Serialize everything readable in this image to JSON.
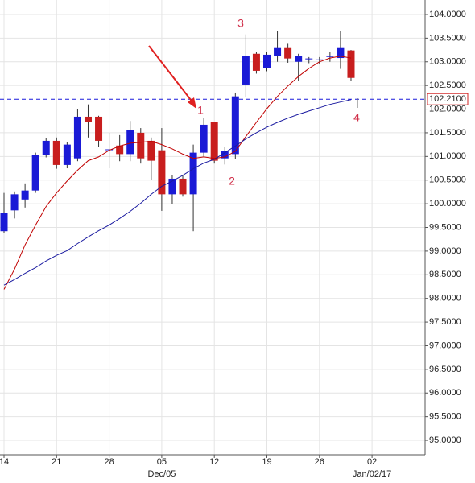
{
  "chart_data": {
    "type": "candlestick",
    "categories": [
      "14",
      null,
      null,
      null,
      null,
      "21",
      null,
      null,
      null,
      null,
      "28",
      null,
      null,
      null,
      null,
      "05",
      null,
      null,
      null,
      null,
      "12",
      null,
      null,
      null,
      null,
      "19",
      null,
      null,
      null,
      null,
      "26",
      null,
      null,
      null,
      null,
      "02"
    ],
    "category_sublabels": [
      null,
      null,
      null,
      null,
      null,
      null,
      null,
      null,
      null,
      null,
      null,
      null,
      null,
      null,
      null,
      "Dec/05",
      null,
      null,
      null,
      null,
      null,
      null,
      null,
      null,
      null,
      null,
      null,
      null,
      null,
      null,
      null,
      null,
      null,
      null,
      null,
      "Jan/02/17"
    ],
    "open": [
      99.42,
      99.86,
      100.09,
      100.28,
      101.03,
      101.33,
      100.82,
      100.96,
      101.84,
      101.84,
      101.15,
      101.23,
      101.05,
      101.5,
      101.33,
      101.13,
      100.2,
      100.53,
      100.2,
      101.08,
      101.73,
      100.96,
      101.05,
      102.52,
      103.17,
      102.86,
      103.12,
      103.29,
      103.0,
      103.07,
      103.05,
      103.12,
      103.08,
      103.24,
      null,
      null
    ],
    "high": [
      100.23,
      100.26,
      100.43,
      101.08,
      101.38,
      101.4,
      101.3,
      102.0,
      102.1,
      101.86,
      101.5,
      101.45,
      101.75,
      101.6,
      101.4,
      101.6,
      100.6,
      100.6,
      101.25,
      101.82,
      101.73,
      101.2,
      102.35,
      103.58,
      103.2,
      103.2,
      103.65,
      103.38,
      103.17,
      103.1,
      103.1,
      103.2,
      103.65,
      103.25,
      null,
      null
    ],
    "low": [
      99.38,
      99.69,
      99.92,
      100.23,
      100.98,
      100.74,
      100.75,
      100.9,
      101.4,
      101.2,
      100.75,
      100.9,
      100.9,
      100.85,
      100.5,
      99.85,
      100.0,
      100.15,
      99.42,
      101.0,
      100.85,
      100.83,
      100.95,
      102.25,
      102.75,
      102.8,
      103.0,
      102.98,
      102.6,
      102.97,
      102.95,
      103.0,
      102.85,
      102.6,
      null,
      null
    ],
    "close": [
      99.81,
      100.2,
      100.28,
      101.03,
      101.33,
      100.82,
      101.25,
      101.84,
      101.72,
      101.33,
      101.15,
      101.05,
      101.55,
      100.96,
      100.91,
      100.2,
      100.53,
      100.2,
      101.08,
      101.67,
      100.91,
      101.11,
      102.27,
      103.12,
      102.81,
      103.15,
      103.29,
      103.07,
      103.12,
      103.07,
      103.05,
      103.12,
      103.29,
      102.66,
      null,
      null
    ],
    "up_color": "#1a1ad6",
    "down_color": "#c81e1e",
    "lines": [
      {
        "color": "#c00000",
        "values": [
          98.19,
          98.62,
          99.13,
          99.55,
          99.94,
          100.23,
          100.48,
          100.71,
          100.91,
          100.99,
          101.13,
          101.22,
          101.28,
          101.3,
          101.32,
          101.25,
          101.16,
          101.05,
          100.96,
          100.99,
          100.96,
          100.99,
          101.11,
          101.42,
          101.72,
          102.01,
          102.27,
          102.49,
          102.69,
          102.86,
          103.0,
          103.08,
          103.12,
          103.08,
          null,
          null
        ]
      },
      {
        "color": "#1a1aa0",
        "values": [
          98.28,
          98.4,
          98.53,
          98.65,
          98.79,
          98.91,
          99.01,
          99.16,
          99.3,
          99.43,
          99.55,
          99.69,
          99.84,
          100.01,
          100.2,
          100.37,
          100.48,
          100.6,
          100.74,
          100.86,
          100.94,
          101.08,
          101.22,
          101.37,
          101.5,
          101.62,
          101.72,
          101.81,
          101.89,
          101.96,
          102.03,
          102.1,
          102.15,
          102.2,
          null,
          null
        ]
      }
    ],
    "hline": {
      "value": 102.21,
      "label": "102.2100",
      "color": "#1a1adc"
    },
    "annotations": [
      "1",
      "2",
      "3",
      "4"
    ],
    "ylim": [
      94.6946,
      104.3057
    ],
    "yticks": [
      {
        "value": 95,
        "label": "95.0000"
      },
      {
        "value": 95.5,
        "label": "95.5000"
      },
      {
        "value": 96,
        "label": "96.0000"
      },
      {
        "value": 96.5,
        "label": "96.5000"
      },
      {
        "value": 97,
        "label": "97.0000"
      },
      {
        "value": 97.5,
        "label": "97.5000"
      },
      {
        "value": 98,
        "label": "98.0000"
      },
      {
        "value": 98.5,
        "label": "98.5000"
      },
      {
        "value": 99,
        "label": "99.0000"
      },
      {
        "value": 99.5,
        "label": "99.5000"
      },
      {
        "value": 100,
        "label": "100.0000"
      },
      {
        "value": 100.5,
        "label": "100.5000"
      },
      {
        "value": 101,
        "label": "101.0000"
      },
      {
        "value": 101.5,
        "label": "101.5000"
      },
      {
        "value": 102,
        "label": "102.0000"
      },
      {
        "value": 102.5,
        "label": "102.5000"
      },
      {
        "value": 103,
        "label": "103.0000"
      },
      {
        "value": 103.5,
        "label": "103.5000"
      },
      {
        "value": 104,
        "label": "104.0000"
      }
    ],
    "grid": true
  }
}
